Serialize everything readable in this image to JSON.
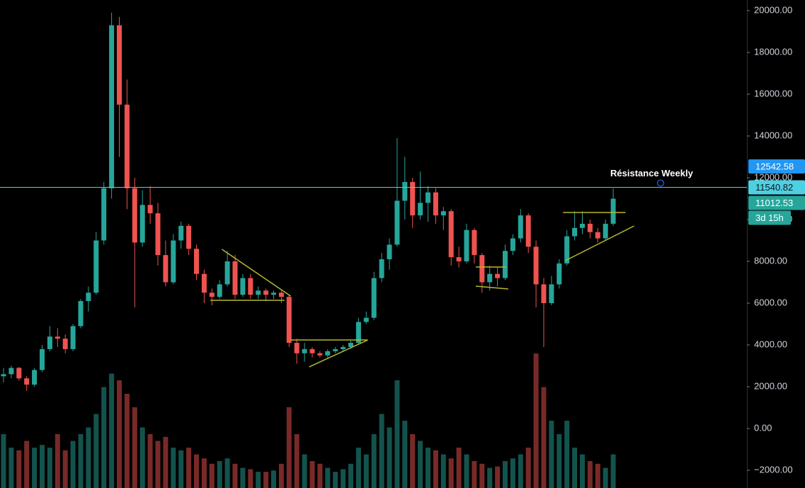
{
  "chart_data": {
    "type": "candlestick",
    "ylim": [
      -2847,
      20508
    ],
    "yticks": [
      {
        "value": 20000,
        "label": "20000.00"
      },
      {
        "value": 18000,
        "label": "18000.00"
      },
      {
        "value": 16000,
        "label": "16000.00"
      },
      {
        "value": 14000,
        "label": "14000.00"
      },
      {
        "value": 12000,
        "label": "12000.00"
      },
      {
        "value": 10000,
        "label": "10000.00"
      },
      {
        "value": 8000,
        "label": "8000.00"
      },
      {
        "value": 6000,
        "label": "6000.00"
      },
      {
        "value": 4000,
        "label": "4000.00"
      },
      {
        "value": 2000,
        "label": "2000.00"
      },
      {
        "value": 0,
        "label": "0.00"
      },
      {
        "value": -2000,
        "label": "−2000.00"
      }
    ],
    "up_color": "#26a69a",
    "down_color": "#ef5350",
    "candles": [
      [
        2500,
        2900,
        2200,
        2600
      ],
      [
        2600,
        3000,
        2400,
        2900
      ],
      [
        2900,
        2950,
        2300,
        2400
      ],
      [
        2400,
        2500,
        1800,
        2100
      ],
      [
        2100,
        2900,
        2000,
        2800
      ],
      [
        2800,
        4000,
        2700,
        3800
      ],
      [
        3800,
        4900,
        3700,
        4400
      ],
      [
        4400,
        4800,
        3900,
        4300
      ],
      [
        4300,
        4500,
        3600,
        3800
      ],
      [
        3800,
        5000,
        3700,
        4900
      ],
      [
        4900,
        6200,
        4800,
        6100
      ],
      [
        6100,
        6800,
        5600,
        6500
      ],
      [
        6500,
        9400,
        6400,
        9000
      ],
      [
        9000,
        11800,
        8800,
        11500
      ],
      [
        11500,
        19900,
        11000,
        19300
      ],
      [
        19300,
        19700,
        13000,
        15500
      ],
      [
        15500,
        16700,
        10500,
        11500
      ],
      [
        11500,
        12000,
        5800,
        8900
      ],
      [
        8900,
        11400,
        8700,
        10700
      ],
      [
        10700,
        11600,
        9800,
        10300
      ],
      [
        10300,
        10800,
        7800,
        8300
      ],
      [
        8300,
        9000,
        6800,
        7000
      ],
      [
        7000,
        9300,
        6900,
        9000
      ],
      [
        9000,
        9900,
        8600,
        9700
      ],
      [
        9700,
        9800,
        8300,
        8600
      ],
      [
        8600,
        8800,
        7100,
        7400
      ],
      [
        7400,
        7600,
        6000,
        6500
      ],
      [
        6500,
        6700,
        5900,
        6300
      ],
      [
        6300,
        7100,
        6200,
        6900
      ],
      [
        6900,
        8500,
        6800,
        8000
      ],
      [
        8000,
        8300,
        6200,
        6400
      ],
      [
        6400,
        7400,
        6300,
        7200
      ],
      [
        7200,
        7400,
        6200,
        6400
      ],
      [
        6400,
        6800,
        6200,
        6600
      ],
      [
        6600,
        6700,
        6100,
        6400
      ],
      [
        6400,
        6600,
        6200,
        6500
      ],
      [
        6500,
        6600,
        6000,
        6300
      ],
      [
        6300,
        6400,
        3900,
        4100
      ],
      [
        4100,
        4300,
        3100,
        3600
      ],
      [
        3600,
        4100,
        3200,
        3800
      ],
      [
        3800,
        3900,
        3400,
        3600
      ],
      [
        3600,
        3700,
        3400,
        3500
      ],
      [
        3500,
        3800,
        3400,
        3700
      ],
      [
        3700,
        3900,
        3600,
        3800
      ],
      [
        3800,
        4000,
        3700,
        3900
      ],
      [
        3900,
        4200,
        3800,
        4100
      ],
      [
        4100,
        5300,
        4000,
        5100
      ],
      [
        5100,
        5600,
        5000,
        5300
      ],
      [
        5300,
        7500,
        5200,
        7200
      ],
      [
        7200,
        8400,
        7000,
        8100
      ],
      [
        8100,
        9100,
        7600,
        8800
      ],
      [
        8800,
        13900,
        8700,
        10900
      ],
      [
        10900,
        13000,
        10000,
        11800
      ],
      [
        11800,
        12000,
        9600,
        10200
      ],
      [
        10200,
        12300,
        10000,
        10800
      ],
      [
        10800,
        11600,
        9900,
        11300
      ],
      [
        11300,
        11500,
        9800,
        10200
      ],
      [
        10200,
        10600,
        9500,
        10400
      ],
      [
        10400,
        10500,
        7800,
        8200
      ],
      [
        8200,
        8700,
        7700,
        8000
      ],
      [
        8000,
        9800,
        7900,
        9500
      ],
      [
        9500,
        9600,
        7900,
        8300
      ],
      [
        8300,
        8400,
        6500,
        7000
      ],
      [
        7000,
        7800,
        6600,
        7400
      ],
      [
        7400,
        7700,
        6800,
        7200
      ],
      [
        7200,
        8800,
        7100,
        8500
      ],
      [
        8500,
        9300,
        8300,
        9100
      ],
      [
        9100,
        10500,
        8900,
        10200
      ],
      [
        10200,
        10300,
        8400,
        8700
      ],
      [
        8700,
        9000,
        5800,
        6900
      ],
      [
        6900,
        7200,
        3900,
        6000
      ],
      [
        6000,
        7300,
        5900,
        6900
      ],
      [
        6900,
        8100,
        6700,
        7900
      ],
      [
        7900,
        9500,
        7800,
        9200
      ],
      [
        9200,
        10400,
        9000,
        9600
      ],
      [
        9600,
        10400,
        9300,
        9800
      ],
      [
        9800,
        10000,
        9100,
        9400
      ],
      [
        9400,
        9600,
        8900,
        9100
      ],
      [
        9100,
        10000,
        9000,
        9800
      ],
      [
        9800,
        11500,
        9700,
        11000
      ]
    ],
    "volumes": [
      40,
      30,
      28,
      35,
      30,
      32,
      30,
      40,
      28,
      35,
      40,
      45,
      55,
      75,
      85,
      80,
      70,
      60,
      45,
      40,
      35,
      38,
      30,
      28,
      30,
      25,
      22,
      18,
      20,
      22,
      18,
      15,
      14,
      12,
      12,
      13,
      18,
      60,
      40,
      25,
      20,
      18,
      15,
      12,
      14,
      18,
      30,
      25,
      40,
      55,
      45,
      80,
      50,
      40,
      35,
      30,
      28,
      25,
      22,
      30,
      25,
      20,
      18,
      15,
      16,
      20,
      22,
      25,
      30,
      100,
      75,
      50,
      40,
      50,
      30,
      25,
      20,
      18,
      15,
      25
    ],
    "vlim": [
      0,
      100
    ],
    "trendline_color": "#b8b82e",
    "trendlines": [
      {
        "x": [
          28.3,
          37.2
        ],
        "y": [
          8576,
          6339
        ]
      },
      {
        "x": [
          26.8,
          36.4
        ],
        "y": [
          6136,
          6136
        ]
      },
      {
        "x": [
          37.2,
          47.2
        ],
        "y": [
          4237,
          4237
        ]
      },
      {
        "x": [
          39.6,
          47.2
        ],
        "y": [
          2949,
          4237
        ]
      },
      {
        "x": [
          61.2,
          65.1
        ],
        "y": [
          7729,
          7729
        ]
      },
      {
        "x": [
          61.2,
          65.4
        ],
        "y": [
          6814,
          6678
        ]
      },
      {
        "x": [
          72.5,
          80.6
        ],
        "y": [
          10339,
          10339
        ]
      },
      {
        "x": [
          72.8,
          81.7
        ],
        "y": [
          8034,
          9695
        ]
      }
    ],
    "resistance": {
      "value": 11540.82,
      "label": "Résistance Weekly",
      "color": "#4dd0e1"
    },
    "price_labels": [
      {
        "value": 12542.58,
        "color": "#2196f3"
      },
      {
        "value": 11012.53,
        "color": "#26a69a"
      }
    ],
    "countdown": "3d 15h"
  }
}
